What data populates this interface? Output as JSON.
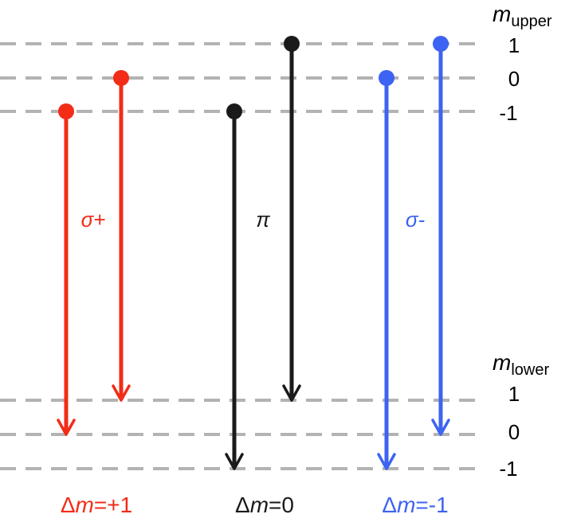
{
  "colors": {
    "red": "#f22c17",
    "black": "#1a1a1a",
    "blue": "#3d63f2",
    "dash": "#b3b3b3"
  },
  "upper_levels": {
    "header_symbol": "m",
    "header_subscript": "upper",
    "labels": [
      "1",
      "0",
      "-1"
    ]
  },
  "lower_levels": {
    "header_symbol": "m",
    "header_subscript": "lower",
    "labels": [
      "1",
      "0",
      "-1"
    ]
  },
  "groups": [
    {
      "polarization": "σ+",
      "delta_prefix": "Δ",
      "delta_m": "m",
      "delta_value": "=+1",
      "color": "red",
      "transitions": [
        {
          "from_m": -1,
          "to_m": 0
        },
        {
          "from_m": 0,
          "to_m": 1
        }
      ]
    },
    {
      "polarization": "π",
      "delta_prefix": "Δ",
      "delta_m": "m",
      "delta_value": "=0",
      "color": "black",
      "transitions": [
        {
          "from_m": -1,
          "to_m": -1
        },
        {
          "from_m": 1,
          "to_m": 1
        }
      ]
    },
    {
      "polarization": "σ-",
      "delta_prefix": "Δ",
      "delta_m": "m",
      "delta_value": "=-1",
      "color": "blue",
      "transitions": [
        {
          "from_m": 0,
          "to_m": -1
        },
        {
          "from_m": 1,
          "to_m": 0
        }
      ]
    }
  ]
}
